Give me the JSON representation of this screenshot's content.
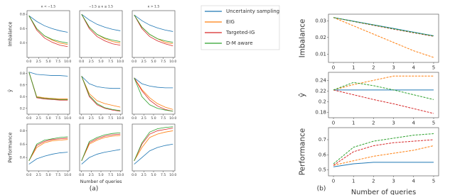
{
  "chart_data": [
    {
      "type": "line",
      "title": "κ < −1.5",
      "ylabel": "Imbalance",
      "x": [
        0,
        2,
        4,
        6,
        8,
        10
      ],
      "xlim": [
        -0.5,
        10.5
      ],
      "xticks": [
        {
          "value": 0,
          "label": "0.0"
        },
        {
          "value": 2.5,
          "label": "2.5"
        },
        {
          "value": 5,
          "label": "5.0"
        },
        {
          "value": 7.5,
          "label": "7.5"
        },
        {
          "value": 10,
          "label": "10.0"
        }
      ],
      "ylim": [
        0.2,
        0.85
      ],
      "yticks": [
        0.4,
        0.6,
        0.8
      ],
      "series": [
        {
          "name": "Uncertainty sampling",
          "color": "#1f77b4",
          "values": [
            0.78,
            0.7,
            0.64,
            0.6,
            0.57,
            0.55
          ]
        },
        {
          "name": "EIG",
          "color": "#ff7f0e",
          "values": [
            0.78,
            0.6,
            0.5,
            0.44,
            0.4,
            0.38
          ]
        },
        {
          "name": "Targeted-IG",
          "color": "#d62728",
          "values": [
            0.78,
            0.58,
            0.47,
            0.41,
            0.37,
            0.35
          ]
        },
        {
          "name": "D-M aware",
          "color": "#2ca02c",
          "values": [
            0.78,
            0.6,
            0.5,
            0.45,
            0.42,
            0.4
          ]
        }
      ]
    },
    {
      "type": "line",
      "title": "−1.5 ≤ κ ≤ 1.5",
      "x": [
        0,
        2,
        4,
        6,
        8,
        10
      ],
      "xlim": [
        -0.5,
        10.5
      ],
      "xticks": [
        {
          "value": 0,
          "label": "0.0"
        },
        {
          "value": 2.5,
          "label": "2.5"
        },
        {
          "value": 5,
          "label": "5.0"
        },
        {
          "value": 7.5,
          "label": "7.5"
        },
        {
          "value": 10,
          "label": "10.0"
        }
      ],
      "ylim": [
        0.2,
        0.85
      ],
      "series": [
        {
          "name": "Uncertainty sampling",
          "color": "#1f77b4",
          "values": [
            0.8,
            0.72,
            0.66,
            0.62,
            0.59,
            0.57
          ]
        },
        {
          "name": "EIG",
          "color": "#ff7f0e",
          "values": [
            0.8,
            0.62,
            0.52,
            0.46,
            0.42,
            0.4
          ]
        },
        {
          "name": "Targeted-IG",
          "color": "#d62728",
          "values": [
            0.8,
            0.6,
            0.49,
            0.43,
            0.39,
            0.37
          ]
        },
        {
          "name": "D-M aware",
          "color": "#2ca02c",
          "values": [
            0.8,
            0.62,
            0.52,
            0.47,
            0.44,
            0.42
          ]
        }
      ]
    },
    {
      "type": "line",
      "title": "κ > 1.5",
      "x": [
        0,
        2,
        4,
        6,
        8,
        10
      ],
      "xlim": [
        -0.5,
        10.5
      ],
      "xticks": [
        {
          "value": 0,
          "label": "0.0"
        },
        {
          "value": 2.5,
          "label": "2.5"
        },
        {
          "value": 5,
          "label": "5.0"
        },
        {
          "value": 7.5,
          "label": "7.5"
        },
        {
          "value": 10,
          "label": "10.0"
        }
      ],
      "ylim": [
        0.2,
        0.85
      ],
      "series": [
        {
          "name": "Uncertainty sampling",
          "color": "#1f77b4",
          "values": [
            0.79,
            0.71,
            0.65,
            0.61,
            0.58,
            0.56
          ]
        },
        {
          "name": "EIG",
          "color": "#ff7f0e",
          "values": [
            0.79,
            0.62,
            0.52,
            0.46,
            0.41,
            0.39
          ]
        },
        {
          "name": "Targeted-IG",
          "color": "#d62728",
          "values": [
            0.79,
            0.6,
            0.49,
            0.43,
            0.39,
            0.36
          ]
        },
        {
          "name": "D-M aware",
          "color": "#2ca02c",
          "values": [
            0.79,
            0.62,
            0.52,
            0.46,
            0.43,
            0.41
          ]
        }
      ]
    },
    {
      "type": "line",
      "ylabel": "ŷ",
      "x": [
        0,
        2,
        4,
        6,
        8,
        10
      ],
      "xlim": [
        -0.5,
        10.5
      ],
      "xticks": [
        {
          "value": 0,
          "label": "0.0"
        },
        {
          "value": 2.5,
          "label": "2.5"
        },
        {
          "value": 5,
          "label": "5.0"
        },
        {
          "value": 7.5,
          "label": "7.5"
        },
        {
          "value": 10,
          "label": "10.0"
        }
      ],
      "ylim": [
        0.1,
        0.9
      ],
      "yticks": [
        0.2,
        0.4,
        0.6,
        0.8
      ],
      "series": [
        {
          "name": "Uncertainty sampling",
          "color": "#1f77b4",
          "values": [
            0.82,
            0.78,
            0.77,
            0.76,
            0.76,
            0.75
          ]
        },
        {
          "name": "EIG",
          "color": "#ff7f0e",
          "values": [
            0.82,
            0.4,
            0.38,
            0.37,
            0.36,
            0.36
          ]
        },
        {
          "name": "Targeted-IG",
          "color": "#d62728",
          "values": [
            0.82,
            0.38,
            0.36,
            0.35,
            0.34,
            0.34
          ]
        },
        {
          "name": "D-M aware",
          "color": "#2ca02c",
          "values": [
            0.82,
            0.39,
            0.37,
            0.36,
            0.35,
            0.35
          ]
        }
      ]
    },
    {
      "type": "line",
      "x": [
        0,
        2,
        4,
        6,
        8,
        10
      ],
      "xlim": [
        -0.5,
        10.5
      ],
      "xticks": [
        {
          "value": 0,
          "label": "0.0"
        },
        {
          "value": 2.5,
          "label": "2.5"
        },
        {
          "value": 5,
          "label": "5.0"
        },
        {
          "value": 7.5,
          "label": "7.5"
        },
        {
          "value": 10,
          "label": "10.0"
        }
      ],
      "ylim": [
        0.1,
        0.9
      ],
      "series": [
        {
          "name": "Uncertainty sampling",
          "color": "#1f77b4",
          "values": [
            0.75,
            0.62,
            0.57,
            0.55,
            0.54,
            0.54
          ]
        },
        {
          "name": "EIG",
          "color": "#ff7f0e",
          "values": [
            0.75,
            0.45,
            0.33,
            0.28,
            0.25,
            0.22
          ]
        },
        {
          "name": "Targeted-IG",
          "color": "#d62728",
          "values": [
            0.75,
            0.4,
            0.26,
            0.2,
            0.17,
            0.15
          ]
        },
        {
          "name": "D-M aware",
          "color": "#2ca02c",
          "values": [
            0.75,
            0.42,
            0.28,
            0.21,
            0.18,
            0.16
          ]
        }
      ]
    },
    {
      "type": "line",
      "x": [
        0,
        2,
        4,
        6,
        8,
        10
      ],
      "xlim": [
        -0.5,
        10.5
      ],
      "xticks": [
        {
          "value": 0,
          "label": "0.0"
        },
        {
          "value": 2.5,
          "label": "2.5"
        },
        {
          "value": 5,
          "label": "5.0"
        },
        {
          "value": 7.5,
          "label": "7.5"
        },
        {
          "value": 10,
          "label": "10.0"
        }
      ],
      "ylim": [
        0.1,
        0.9
      ],
      "series": [
        {
          "name": "Uncertainty sampling",
          "color": "#1f77b4",
          "values": [
            0.72,
            0.62,
            0.58,
            0.56,
            0.55,
            0.55
          ]
        },
        {
          "name": "EIG",
          "color": "#ff7f0e",
          "values": [
            0.72,
            0.52,
            0.38,
            0.28,
            0.22,
            0.18
          ]
        },
        {
          "name": "Targeted-IG",
          "color": "#d62728",
          "values": [
            0.72,
            0.5,
            0.34,
            0.24,
            0.18,
            0.15
          ]
        },
        {
          "name": "D-M aware",
          "color": "#2ca02c",
          "values": [
            0.72,
            0.4,
            0.26,
            0.2,
            0.17,
            0.15
          ]
        }
      ]
    },
    {
      "type": "line",
      "ylabel": "Performance",
      "x": [
        0,
        2,
        4,
        6,
        8,
        10
      ],
      "xlim": [
        -0.5,
        10.5
      ],
      "xticks": [
        {
          "value": 0,
          "label": "0.0"
        },
        {
          "value": 2.5,
          "label": "2.5"
        },
        {
          "value": 5,
          "label": "5.0"
        },
        {
          "value": 7.5,
          "label": "7.5"
        },
        {
          "value": 10,
          "label": "10.0"
        }
      ],
      "ylim": [
        0.2,
        0.9
      ],
      "yticks": [
        0.4,
        0.6,
        0.8
      ],
      "series": [
        {
          "name": "Uncertainty sampling",
          "color": "#1f77b4",
          "values": [
            0.3,
            0.38,
            0.42,
            0.45,
            0.47,
            0.48
          ]
        },
        {
          "name": "EIG",
          "color": "#ff7f0e",
          "values": [
            0.35,
            0.55,
            0.62,
            0.65,
            0.66,
            0.67
          ]
        },
        {
          "name": "Targeted-IG",
          "color": "#d62728",
          "values": [
            0.35,
            0.58,
            0.64,
            0.67,
            0.68,
            0.69
          ]
        },
        {
          "name": "D-M aware",
          "color": "#2ca02c",
          "values": [
            0.35,
            0.6,
            0.66,
            0.68,
            0.7,
            0.71
          ]
        }
      ]
    },
    {
      "type": "line",
      "xlabel": "Number of queries",
      "x": [
        0,
        2,
        4,
        6,
        8,
        10
      ],
      "xlim": [
        -0.5,
        10.5
      ],
      "xticks": [
        {
          "value": 0,
          "label": "0.0"
        },
        {
          "value": 2.5,
          "label": "2.5"
        },
        {
          "value": 5,
          "label": "5.0"
        },
        {
          "value": 7.5,
          "label": "7.5"
        },
        {
          "value": 10,
          "label": "10.0"
        }
      ],
      "ylim": [
        0.2,
        0.9
      ],
      "series": [
        {
          "name": "Uncertainty sampling",
          "color": "#1f77b4",
          "values": [
            0.3,
            0.4,
            0.45,
            0.48,
            0.5,
            0.52
          ]
        },
        {
          "name": "EIG",
          "color": "#ff7f0e",
          "values": [
            0.35,
            0.6,
            0.66,
            0.7,
            0.72,
            0.73
          ]
        },
        {
          "name": "Targeted-IG",
          "color": "#d62728",
          "values": [
            0.35,
            0.62,
            0.68,
            0.72,
            0.74,
            0.75
          ]
        },
        {
          "name": "D-M aware",
          "color": "#2ca02c",
          "values": [
            0.35,
            0.64,
            0.7,
            0.74,
            0.76,
            0.77
          ]
        }
      ]
    },
    {
      "type": "line",
      "x": [
        0,
        2,
        4,
        6,
        8,
        10
      ],
      "xlim": [
        -0.5,
        10.5
      ],
      "xticks": [
        {
          "value": 0,
          "label": "0.0"
        },
        {
          "value": 2.5,
          "label": "2.5"
        },
        {
          "value": 5,
          "label": "5.0"
        },
        {
          "value": 7.5,
          "label": "7.5"
        },
        {
          "value": 10,
          "label": "10.0"
        }
      ],
      "ylim": [
        0.2,
        0.9
      ],
      "series": [
        {
          "name": "Uncertainty sampling",
          "color": "#1f77b4",
          "values": [
            0.3,
            0.4,
            0.5,
            0.55,
            0.58,
            0.6
          ]
        },
        {
          "name": "EIG",
          "color": "#ff7f0e",
          "values": [
            0.35,
            0.55,
            0.7,
            0.75,
            0.78,
            0.8
          ]
        },
        {
          "name": "Targeted-IG",
          "color": "#d62728",
          "values": [
            0.35,
            0.6,
            0.75,
            0.8,
            0.82,
            0.84
          ]
        },
        {
          "name": "D-M aware",
          "color": "#2ca02c",
          "values": [
            0.35,
            0.62,
            0.78,
            0.83,
            0.85,
            0.86
          ]
        }
      ]
    },
    {
      "type": "line",
      "ylabel": "Imbalance",
      "x": [
        0,
        1,
        2,
        3,
        4,
        5
      ],
      "xlim": [
        -0.25,
        5.25
      ],
      "xticks": [
        0,
        1,
        2,
        3,
        4,
        5
      ],
      "ylim": [
        0.005,
        0.034
      ],
      "yticks": [
        0.01,
        0.02,
        0.03
      ],
      "series": [
        {
          "name": "Uncertainty sampling",
          "color": "#1f77b4",
          "values": [
            0.032,
            0.0298,
            0.0276,
            0.0254,
            0.0232,
            0.021
          ]
        },
        {
          "name": "EIG",
          "color": "#ff7f0e",
          "values": [
            0.032,
            0.027,
            0.022,
            0.017,
            0.012,
            0.008
          ]
        },
        {
          "name": "Targeted-IG",
          "color": "#d62728",
          "values": [
            0.032,
            0.0296,
            0.0273,
            0.025,
            0.0228,
            0.0207
          ]
        },
        {
          "name": "D-M aware",
          "color": "#2ca02c",
          "values": [
            0.032,
            0.0297,
            0.0275,
            0.0252,
            0.023,
            0.0209
          ]
        }
      ]
    },
    {
      "type": "line",
      "ylabel": "ŷ",
      "x": [
        0,
        1,
        2,
        3,
        4,
        5
      ],
      "xlim": [
        -0.25,
        5.25
      ],
      "xticks": [
        0,
        1,
        2,
        3,
        4,
        5
      ],
      "ylim": [
        0.17,
        0.255
      ],
      "yticks": [
        0.18,
        0.2,
        0.22,
        0.24
      ],
      "series": [
        {
          "name": "Uncertainty sampling",
          "color": "#1f77b4",
          "values": [
            0.222,
            0.222,
            0.222,
            0.222,
            0.222,
            0.222
          ]
        },
        {
          "name": "EIG",
          "color": "#ff7f0e",
          "values": [
            0.222,
            0.232,
            0.24,
            0.248,
            0.248,
            0.248
          ]
        },
        {
          "name": "Targeted-IG",
          "color": "#d62728",
          "values": [
            0.222,
            0.213,
            0.204,
            0.196,
            0.187,
            0.178
          ]
        },
        {
          "name": "D-M aware",
          "color": "#2ca02c",
          "values": [
            0.222,
            0.236,
            0.23,
            0.222,
            0.213,
            0.204
          ]
        }
      ]
    },
    {
      "type": "line",
      "ylabel": "Performance",
      "xlabel": "Number of queries",
      "x": [
        0,
        1,
        2,
        3,
        4,
        5
      ],
      "xlim": [
        -0.25,
        5.25
      ],
      "xticks": [
        0,
        1,
        2,
        3,
        4,
        5
      ],
      "ylim": [
        0.46,
        0.78
      ],
      "yticks": [
        0.5,
        0.6,
        0.7
      ],
      "series": [
        {
          "name": "Uncertainty sampling",
          "color": "#1f77b4",
          "values": [
            0.52,
            0.54,
            0.55,
            0.55,
            0.55,
            0.55
          ]
        },
        {
          "name": "EIG",
          "color": "#ff7f0e",
          "values": [
            0.53,
            0.56,
            0.59,
            0.61,
            0.63,
            0.66
          ]
        },
        {
          "name": "Targeted-IG",
          "color": "#d62728",
          "values": [
            0.53,
            0.62,
            0.66,
            0.68,
            0.69,
            0.7
          ]
        },
        {
          "name": "D-M aware",
          "color": "#2ca02c",
          "values": [
            0.54,
            0.65,
            0.69,
            0.71,
            0.73,
            0.74
          ]
        }
      ]
    }
  ],
  "panel_captions": [
    "(a)",
    "(b)"
  ]
}
